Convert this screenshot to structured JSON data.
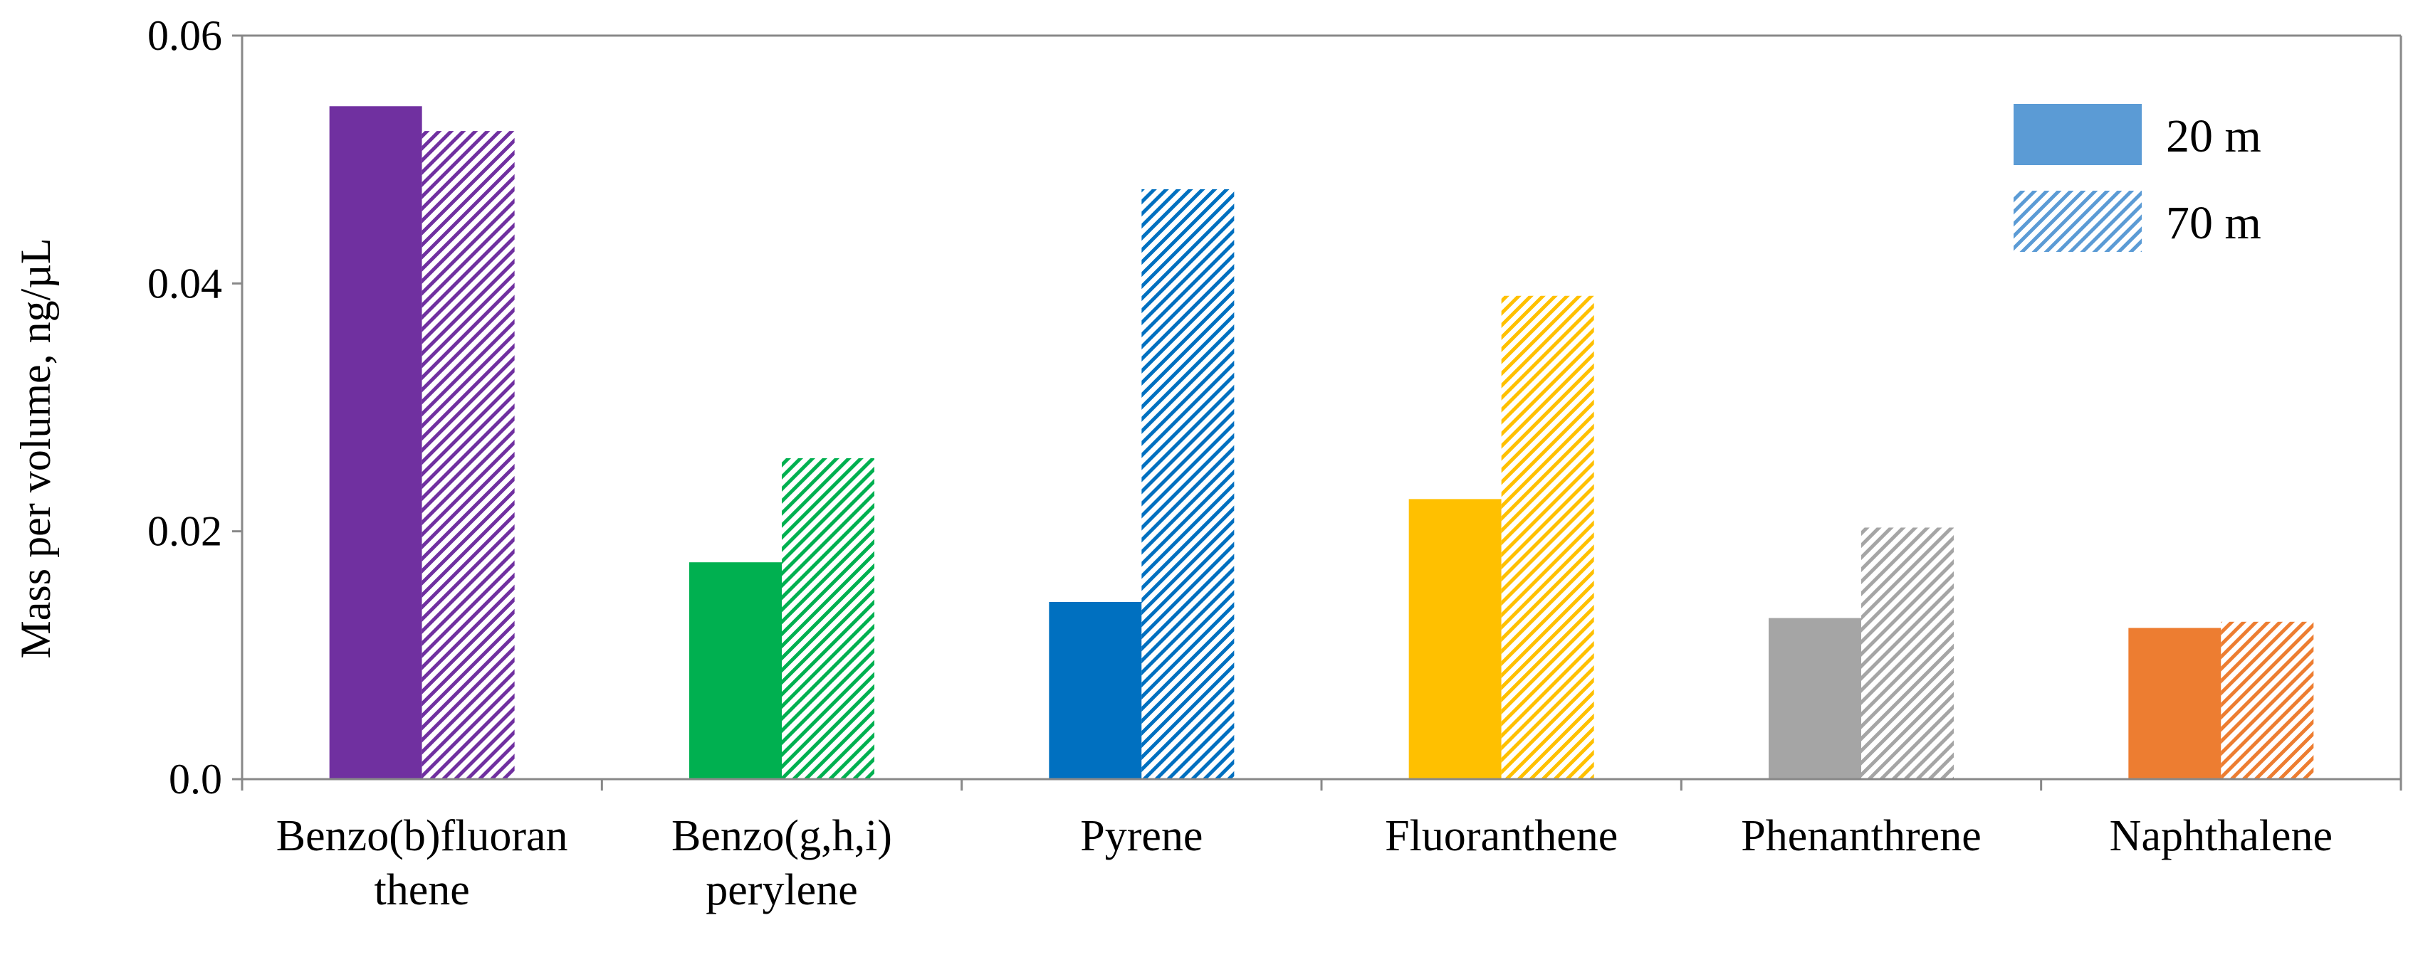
{
  "chart_data": {
    "type": "bar",
    "title": "",
    "xlabel": "",
    "ylabel": "Mass per volume,  ng/µL",
    "ylim": [
      0,
      0.06
    ],
    "yticks": [
      "0.0",
      "0.02",
      "0.04",
      "0.06"
    ],
    "categories": [
      {
        "lines": [
          "Benzo(b)fluoran",
          "thene"
        ],
        "color": "#7030A0"
      },
      {
        "lines": [
          "Benzo(g,h,i)",
          "perylene"
        ],
        "color": "#00B050"
      },
      {
        "lines": [
          "Pyrene"
        ],
        "color": "#0070C0"
      },
      {
        "lines": [
          "Fluoranthene"
        ],
        "color": "#FFC000"
      },
      {
        "lines": [
          "Phenanthrene"
        ],
        "color": "#A5A5A5"
      },
      {
        "lines": [
          "Naphthalene"
        ],
        "color": "#ED7D31"
      }
    ],
    "series": [
      {
        "name": "20 m",
        "pattern": "solid",
        "values": [
          0.0543,
          0.0175,
          0.0143,
          0.0226,
          0.013,
          0.0122
        ]
      },
      {
        "name": "70 m",
        "pattern": "hatched",
        "values": [
          0.0523,
          0.0259,
          0.0476,
          0.039,
          0.0203,
          0.0127
        ]
      }
    ],
    "legend": {
      "position": "top-right",
      "color": "#5B9BD5"
    }
  }
}
